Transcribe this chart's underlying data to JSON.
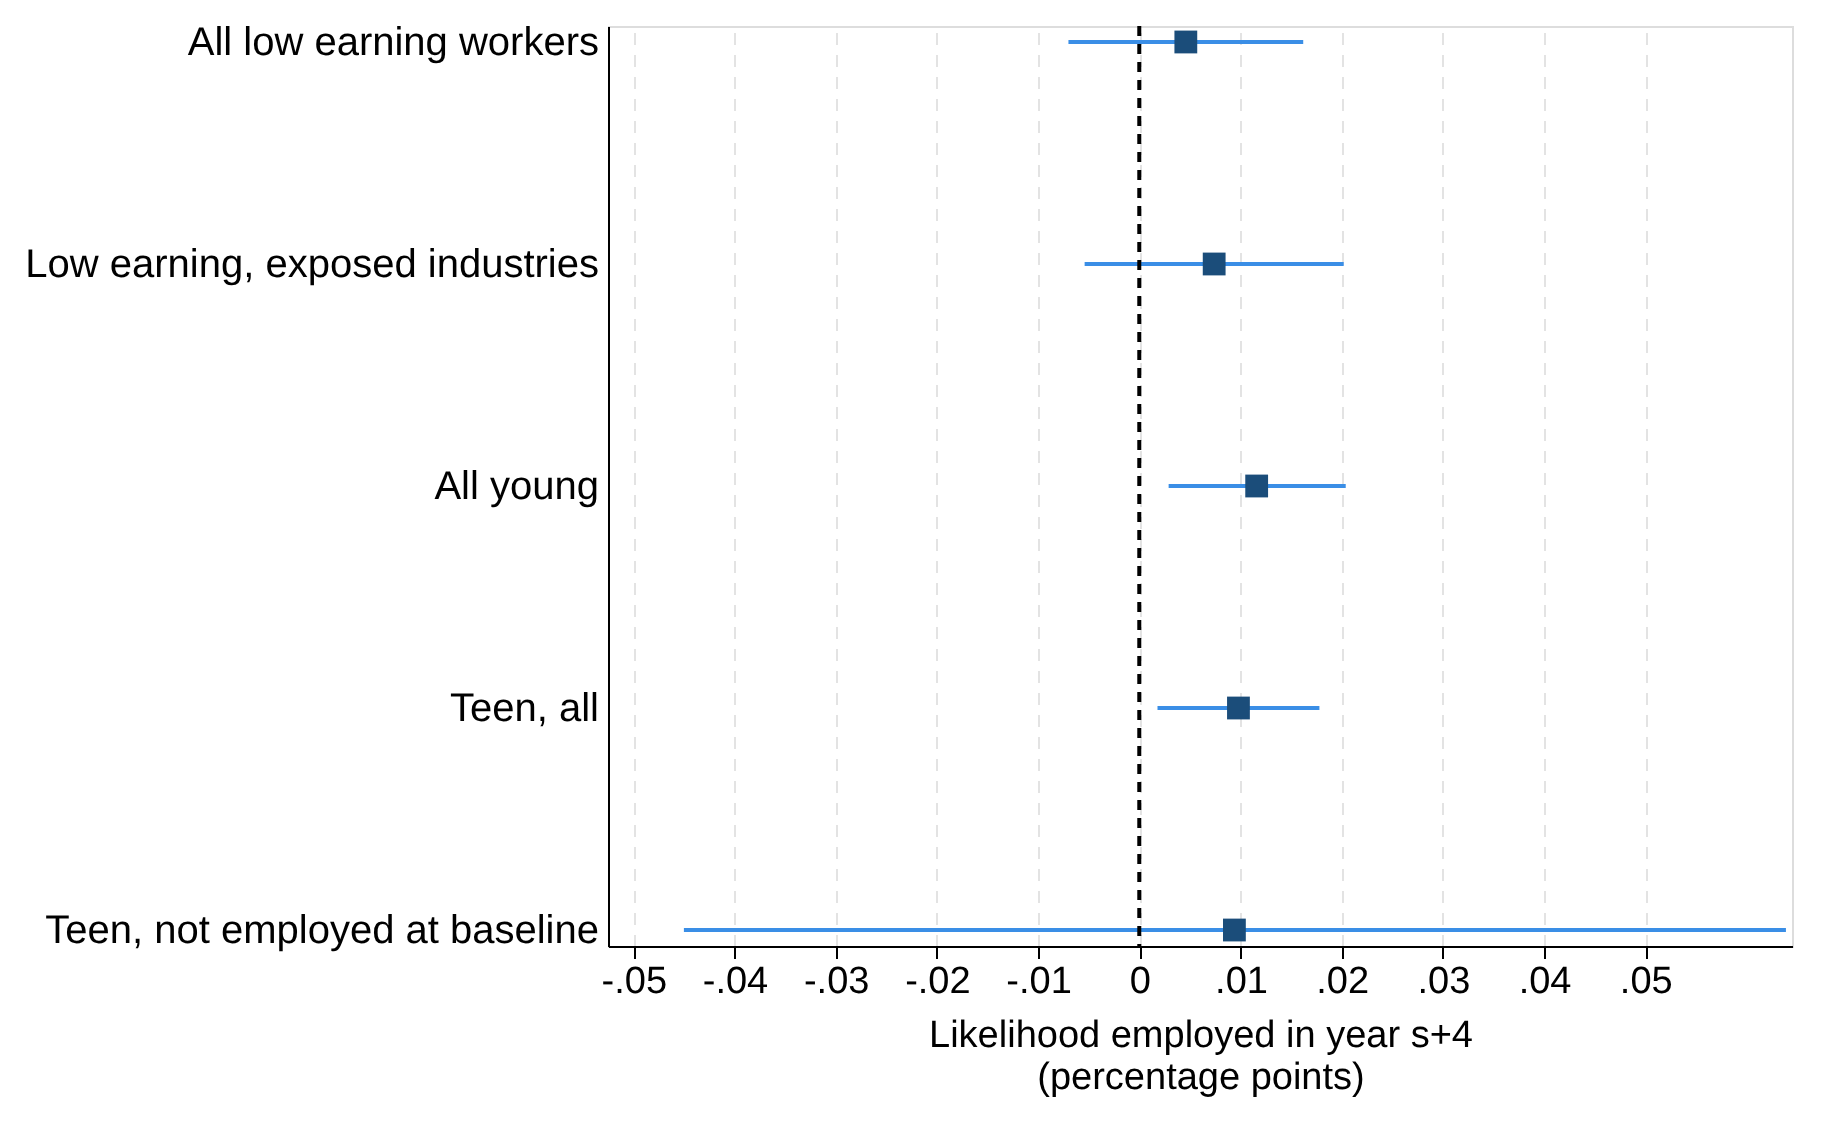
{
  "chart_data": {
    "type": "scatter",
    "orientation": "horizontal",
    "categories": [
      "All low earning workers",
      "Low earning, exposed industries",
      "All young",
      "Teen, all",
      "Teen, not employed at baseline"
    ],
    "series": [
      {
        "color": "#1b4d7a",
        "values": [
          0.0046,
          0.0074,
          0.0116,
          0.0098,
          0.0094
        ],
        "errors": [
          [
            -0.007,
            0.0162
          ],
          [
            -0.0054,
            0.0202
          ],
          [
            0.0029,
            0.0204
          ],
          [
            0.0018,
            0.0178
          ],
          [
            -0.045,
            0.0639
          ]
        ]
      }
    ],
    "xlabel": "Likelihood employed in year s+4\n(percentage points)",
    "xlim": [
      -0.0525,
      0.0645
    ],
    "xticks": [
      {
        "value": -0.05,
        "label": "-.05"
      },
      {
        "value": -0.04,
        "label": "-.04"
      },
      {
        "value": -0.03,
        "label": "-.03"
      },
      {
        "value": -0.02,
        "label": "-.02"
      },
      {
        "value": -0.01,
        "label": "-.01"
      },
      0,
      {
        "value": 0.01,
        "label": ".01"
      },
      {
        "value": 0.02,
        "label": ".02"
      },
      {
        "value": 0.03,
        "label": ".03"
      },
      {
        "value": 0.04,
        "label": ".04"
      },
      {
        "value": 0.05,
        "label": ".05"
      }
    ],
    "ref_lines": [
      {
        "axis": "x",
        "value": 0,
        "color": "#000000",
        "line_style": "dashed"
      }
    ],
    "grid": "x",
    "marker": "square"
  }
}
